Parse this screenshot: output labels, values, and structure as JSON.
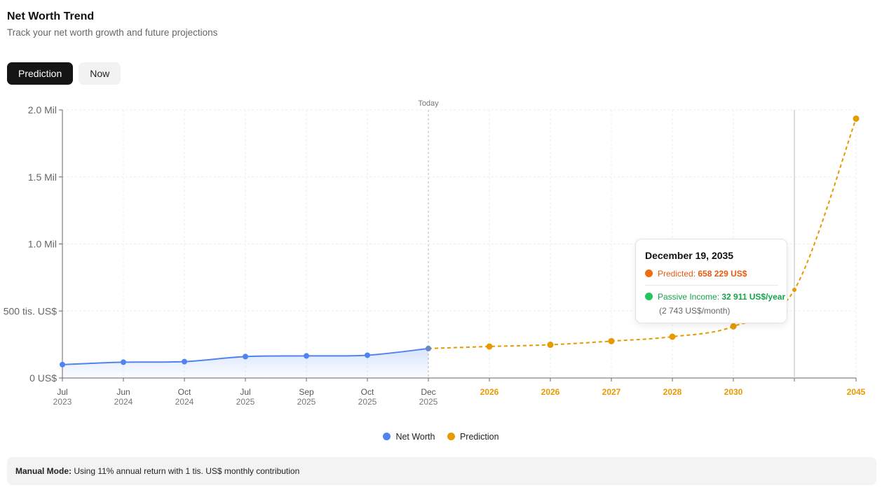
{
  "header": {
    "title": "Net Worth Trend",
    "subtitle": "Track your net worth growth and future projections"
  },
  "tabs": [
    {
      "label": "Prediction",
      "active": true
    },
    {
      "label": "Now",
      "active": false
    }
  ],
  "tooltip": {
    "date": "December 19, 2035",
    "predicted_label": "Predicted: ",
    "predicted_value": "658 229 US$",
    "passive_label": "Passive Income: ",
    "passive_value": "32 911 US$/year",
    "monthly": "(2 743 US$/month)"
  },
  "footer": {
    "mode_label": "Manual Mode:",
    "mode_text": " Using 11% annual return with 1 tis. US$ monthly contribution"
  },
  "colors": {
    "net_worth": "#4f84f0",
    "prediction": "#e69a00",
    "predicted_dot": "#f26b0f",
    "passive_dot": "#22c55e",
    "predicted_text": "#ea580c",
    "passive_text": "#16a34a"
  },
  "chart_data": {
    "type": "line",
    "y_ticks": [
      {
        "value": 0,
        "label": "0 US$"
      },
      {
        "value": 500000,
        "label": "500 tis. US$"
      },
      {
        "value": 1000000,
        "label": "1.0 Mil"
      },
      {
        "value": 1500000,
        "label": "1.5 Mil"
      },
      {
        "value": 2000000,
        "label": "2.0 Mil"
      }
    ],
    "ylim": [
      0,
      2000000
    ],
    "today_label": "Today",
    "grid": true,
    "legend_placement": "bottom-center",
    "series": [
      {
        "name": "Net Worth",
        "color": "#4f84f0",
        "points": [
          {
            "month": "Jul",
            "year": "2023",
            "value": 100000
          },
          {
            "month": "Jun",
            "year": "2024",
            "value": 118000
          },
          {
            "month": "Oct",
            "year": "2024",
            "value": 122000
          },
          {
            "month": "Jul",
            "year": "2025",
            "value": 160000
          },
          {
            "month": "Sep",
            "year": "2025",
            "value": 165000
          },
          {
            "month": "Oct",
            "year": "2025",
            "value": 170000
          },
          {
            "month": "Dec",
            "year": "2025",
            "value": 220000
          }
        ]
      },
      {
        "name": "Prediction",
        "color": "#e69a00",
        "points": [
          {
            "label": "2026",
            "value": 235000
          },
          {
            "label": "2026",
            "value": 248000
          },
          {
            "label": "2027",
            "value": 275000
          },
          {
            "label": "2028",
            "value": 308000
          },
          {
            "label": "2030",
            "value": 385000
          },
          {
            "label": "",
            "value": 658229
          },
          {
            "label": "2045",
            "value": 1935000
          }
        ]
      }
    ]
  }
}
